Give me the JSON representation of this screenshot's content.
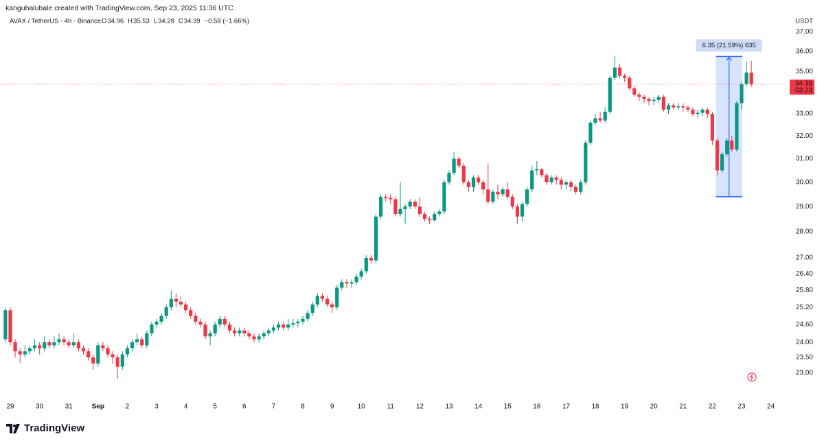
{
  "header": {
    "attribution": "kanguhalubale created with TradingView.com, Sep 23, 2025 11:36 UTC",
    "symbol": "AVAX / TetherUS · 4h · Binance",
    "ohlc": [
      {
        "label": "O",
        "value": 34.96
      },
      {
        "label": "H",
        "value": 35.53
      },
      {
        "label": "L",
        "value": 34.28
      },
      {
        "label": "C",
        "value": 34.39
      }
    ],
    "change": "−0.58 (−1.66%)"
  },
  "brand": "TradingView",
  "chart_data": {
    "type": "candlestick",
    "currency": "USDT",
    "log_scale": true,
    "grid": false,
    "up_color": "#089981",
    "down_color": "#f23645",
    "categories": [
      null,
      "29",
      null,
      null,
      null,
      null,
      null,
      "30",
      null,
      null,
      null,
      null,
      null,
      "31",
      null,
      null,
      null,
      null,
      null,
      "Sep",
      null,
      null,
      null,
      null,
      null,
      "2",
      null,
      null,
      null,
      null,
      null,
      "3",
      null,
      null,
      null,
      null,
      null,
      "4",
      null,
      null,
      null,
      null,
      null,
      "5",
      null,
      null,
      null,
      null,
      null,
      "6",
      null,
      null,
      null,
      null,
      null,
      "7",
      null,
      null,
      null,
      null,
      null,
      "8",
      null,
      null,
      null,
      null,
      null,
      "9",
      null,
      null,
      null,
      null,
      null,
      "10",
      null,
      null,
      null,
      null,
      null,
      "11",
      null,
      null,
      null,
      null,
      null,
      "12",
      null,
      null,
      null,
      null,
      null,
      "13",
      null,
      null,
      null,
      null,
      null,
      "14",
      null,
      null,
      null,
      null,
      null,
      "15",
      null,
      null,
      null,
      null,
      null,
      "16",
      null,
      null,
      null,
      null,
      null,
      "17",
      null,
      null,
      null,
      null,
      null,
      "18",
      null,
      null,
      null,
      null,
      null,
      "19",
      null,
      null,
      null,
      null,
      null,
      "20",
      null,
      null,
      null,
      null,
      null,
      "21",
      null,
      null,
      null,
      null,
      null,
      "22",
      null,
      null,
      null,
      null,
      null,
      "23",
      null,
      null,
      null,
      null,
      null,
      "24"
    ],
    "open": [
      24.1,
      25.1,
      24.0,
      23.7,
      23.6,
      23.7,
      23.8,
      23.9,
      23.8,
      24.0,
      23.9,
      24.0,
      24.1,
      24.0,
      23.9,
      24.0,
      23.8,
      23.7,
      23.5,
      23.3,
      23.9,
      23.8,
      23.6,
      23.5,
      23.2,
      23.6,
      23.8,
      24.0,
      24.1,
      23.9,
      24.3,
      24.6,
      24.7,
      24.9,
      25.2,
      25.5,
      25.4,
      25.3,
      25.1,
      24.9,
      24.7,
      24.6,
      24.2,
      24.3,
      24.6,
      24.8,
      24.6,
      24.4,
      24.3,
      24.4,
      24.3,
      24.2,
      24.1,
      24.2,
      24.3,
      24.4,
      24.5,
      24.6,
      24.5,
      24.6,
      24.65,
      24.7,
      24.8,
      25.0,
      25.3,
      25.6,
      25.5,
      25.3,
      25.2,
      25.9,
      26.1,
      26.05,
      26.1,
      26.3,
      26.5,
      27.0,
      26.9,
      28.6,
      29.4,
      29.35,
      29.3,
      28.7,
      28.9,
      29.0,
      29.2,
      29.0,
      28.7,
      28.5,
      28.45,
      28.7,
      28.8,
      30.0,
      30.4,
      31.0,
      30.7,
      30.0,
      29.8,
      30.2,
      30.0,
      29.7,
      29.2,
      29.6,
      29.5,
      29.7,
      29.4,
      29.0,
      28.6,
      29.1,
      29.7,
      30.5,
      30.55,
      30.3,
      30.0,
      30.2,
      30.1,
      29.9,
      30.0,
      29.8,
      29.6,
      30.0,
      31.7,
      32.6,
      32.8,
      32.7,
      33.1,
      34.7,
      35.2,
      34.8,
      34.7,
      34.2,
      33.9,
      33.8,
      33.7,
      33.6,
      33.65,
      33.8,
      33.2,
      33.4,
      33.3,
      33.35,
      33.3,
      33.2,
      33.0,
      33.05,
      33.2,
      33.0,
      31.8,
      30.5,
      31.2,
      31.8,
      31.4,
      33.5,
      34.4,
      34.96,
      null,
      null,
      null,
      null
    ],
    "high": [
      25.2,
      25.2,
      24.1,
      23.8,
      23.9,
      23.9,
      24.1,
      24.0,
      24.2,
      24.1,
      24.2,
      24.3,
      24.2,
      24.1,
      24.3,
      24.1,
      23.9,
      23.8,
      23.6,
      24.0,
      24.0,
      23.9,
      23.7,
      23.6,
      23.7,
      23.9,
      24.1,
      24.3,
      24.2,
      24.4,
      24.7,
      24.8,
      25.0,
      25.3,
      25.8,
      25.7,
      25.6,
      25.4,
      25.2,
      25.0,
      24.8,
      24.7,
      24.4,
      24.7,
      24.9,
      24.9,
      24.7,
      24.5,
      24.5,
      24.5,
      24.4,
      24.3,
      24.3,
      24.4,
      24.5,
      24.6,
      24.7,
      24.7,
      24.8,
      24.8,
      24.8,
      24.9,
      25.1,
      25.4,
      25.7,
      25.7,
      25.6,
      25.4,
      26.0,
      26.2,
      26.2,
      26.2,
      26.4,
      26.6,
      27.1,
      27.1,
      28.7,
      29.5,
      29.5,
      29.5,
      29.4,
      30.0,
      29.1,
      29.3,
      29.3,
      29.4,
      28.8,
      28.6,
      28.8,
      28.9,
      30.1,
      30.5,
      31.3,
      31.1,
      30.8,
      30.1,
      30.3,
      30.3,
      30.1,
      30.8,
      29.7,
      29.9,
      29.8,
      30.0,
      29.5,
      29.1,
      29.2,
      29.8,
      30.7,
      30.9,
      30.6,
      30.4,
      30.3,
      30.3,
      30.2,
      30.1,
      30.1,
      29.9,
      30.1,
      31.8,
      32.7,
      33.0,
      33.1,
      33.3,
      34.8,
      35.8,
      35.4,
      34.9,
      34.8,
      34.3,
      34.0,
      33.9,
      33.8,
      33.8,
      33.9,
      33.9,
      33.5,
      33.5,
      33.5,
      33.5,
      33.4,
      33.3,
      33.2,
      33.3,
      33.3,
      33.1,
      31.9,
      31.3,
      31.9,
      32.0,
      33.6,
      34.5,
      35.5,
      35.53,
      null,
      null,
      null,
      null
    ],
    "low": [
      24.0,
      23.9,
      23.5,
      23.3,
      23.5,
      23.6,
      23.7,
      23.6,
      23.7,
      23.8,
      23.8,
      23.9,
      23.9,
      23.8,
      23.8,
      23.7,
      23.6,
      23.4,
      23.1,
      23.2,
      23.7,
      23.5,
      23.3,
      22.8,
      23.1,
      23.5,
      23.7,
      23.9,
      23.8,
      23.8,
      24.2,
      24.5,
      24.6,
      24.8,
      25.1,
      25.2,
      25.2,
      25.0,
      24.8,
      24.6,
      24.5,
      24.1,
      23.9,
      24.2,
      24.5,
      24.5,
      24.3,
      24.2,
      24.2,
      24.2,
      24.1,
      24.0,
      24.0,
      24.1,
      24.2,
      24.3,
      24.4,
      24.4,
      24.4,
      24.5,
      24.5,
      24.6,
      24.7,
      24.9,
      25.2,
      25.4,
      25.2,
      25.0,
      25.1,
      25.8,
      25.9,
      25.9,
      26.0,
      26.2,
      26.4,
      26.8,
      26.8,
      28.5,
      29.2,
      29.1,
      28.6,
      28.6,
      28.3,
      28.9,
      28.9,
      28.6,
      28.4,
      28.3,
      28.4,
      28.6,
      28.7,
      29.9,
      30.3,
      30.6,
      29.9,
      29.6,
      29.6,
      29.9,
      29.5,
      29.1,
      29.1,
      29.3,
      29.4,
      29.3,
      28.9,
      28.3,
      28.4,
      29.0,
      29.6,
      30.3,
      30.2,
      29.9,
      29.9,
      29.9,
      29.7,
      29.7,
      29.6,
      29.5,
      29.5,
      29.9,
      31.6,
      32.5,
      32.6,
      32.6,
      33.0,
      34.6,
      34.7,
      34.5,
      34.1,
      33.8,
      33.6,
      33.5,
      33.4,
      33.4,
      33.5,
      33.1,
      33.0,
      33.2,
      33.2,
      33.1,
      33.1,
      32.9,
      32.8,
      32.9,
      32.8,
      31.6,
      30.3,
      30.4,
      31.1,
      31.3,
      31.3,
      33.2,
      34.3,
      34.28,
      null,
      null,
      null,
      null
    ],
    "close": [
      25.1,
      24.0,
      23.7,
      23.6,
      23.7,
      23.8,
      23.9,
      23.8,
      24.0,
      23.9,
      24.0,
      24.1,
      24.0,
      23.9,
      24.0,
      23.8,
      23.7,
      23.5,
      23.3,
      23.9,
      23.8,
      23.6,
      23.5,
      23.2,
      23.6,
      23.8,
      24.0,
      24.1,
      23.9,
      24.3,
      24.6,
      24.7,
      24.9,
      25.2,
      25.5,
      25.4,
      25.3,
      25.1,
      24.9,
      24.7,
      24.6,
      24.2,
      24.3,
      24.6,
      24.8,
      24.6,
      24.4,
      24.3,
      24.4,
      24.3,
      24.2,
      24.1,
      24.2,
      24.3,
      24.4,
      24.5,
      24.6,
      24.5,
      24.6,
      24.65,
      24.7,
      24.8,
      25.0,
      25.3,
      25.6,
      25.5,
      25.3,
      25.2,
      25.9,
      26.1,
      26.05,
      26.1,
      26.3,
      26.5,
      27.0,
      26.9,
      28.6,
      29.4,
      29.35,
      29.3,
      28.7,
      28.9,
      29.0,
      29.2,
      29.0,
      28.7,
      28.5,
      28.45,
      28.7,
      28.8,
      30.0,
      30.4,
      31.0,
      30.7,
      30.0,
      29.8,
      30.2,
      30.0,
      29.7,
      29.2,
      29.6,
      29.5,
      29.7,
      29.4,
      29.0,
      28.6,
      29.1,
      29.7,
      30.5,
      30.55,
      30.3,
      30.0,
      30.2,
      30.1,
      29.9,
      30.0,
      29.8,
      29.6,
      30.0,
      31.7,
      32.6,
      32.8,
      32.7,
      33.1,
      34.7,
      35.2,
      34.8,
      34.7,
      34.2,
      33.9,
      33.8,
      33.7,
      33.6,
      33.65,
      33.8,
      33.2,
      33.4,
      33.3,
      33.35,
      33.3,
      33.2,
      33.0,
      33.05,
      33.2,
      33.0,
      31.8,
      30.5,
      31.2,
      31.8,
      31.4,
      33.5,
      34.4,
      34.96,
      34.39,
      null,
      null,
      null,
      null
    ],
    "ylim": [
      22.6,
      37.3
    ],
    "yticks": [
      {
        "value": 23,
        "label": "23.00"
      },
      {
        "value": 23.5,
        "label": "23.50"
      },
      {
        "value": 24,
        "label": "24.00"
      },
      {
        "value": 24.6,
        "label": "24.60"
      },
      {
        "value": 25.2,
        "label": "25.20"
      },
      {
        "value": 25.8,
        "label": "25.80"
      },
      {
        "value": 26.4,
        "label": "26.40"
      },
      {
        "value": 27,
        "label": "27.00"
      },
      {
        "value": 28,
        "label": "28.00"
      },
      {
        "value": 29,
        "label": "29.00"
      },
      {
        "value": 30,
        "label": "30.00"
      },
      {
        "value": 31,
        "label": "31.00"
      },
      {
        "value": 32,
        "label": "32.00"
      },
      {
        "value": 33,
        "label": "33.00"
      },
      {
        "value": 35,
        "label": "35.00"
      },
      {
        "value": 36,
        "label": "36.00"
      },
      {
        "value": 37,
        "label": "37.00"
      }
    ],
    "last_price": {
      "value": 34.39,
      "countdown": "03:23"
    },
    "measure": {
      "label": "6.35 (21.59%) 635",
      "from": 29.4,
      "to": 35.75
    }
  }
}
